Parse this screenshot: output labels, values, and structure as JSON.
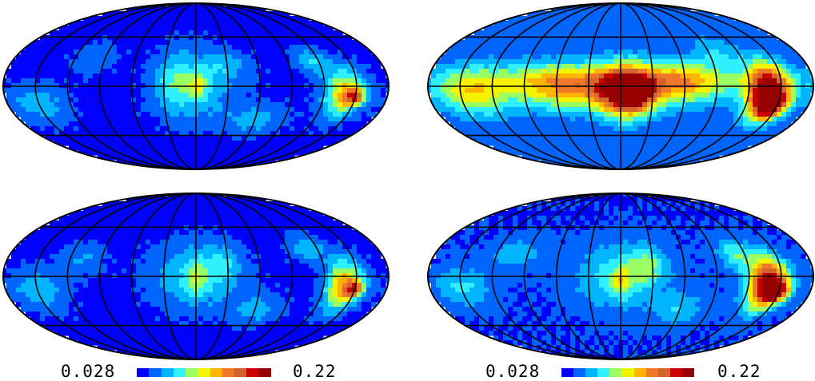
{
  "chart_data": {
    "type": "heatmap",
    "projection": "mollweide",
    "graticule": {
      "meridian_count": 13,
      "parallel_count": 3
    },
    "colormap": [
      "#0000ff",
      "#0064ff",
      "#00b4ff",
      "#2ef0ff",
      "#9aff62",
      "#f4f400",
      "#ffb400",
      "#f07828",
      "#d2642c",
      "#c80000",
      "#960000"
    ],
    "panels": [
      {
        "id": "top-left",
        "background_level": 0.04,
        "blobs": [
          {
            "lon": 0,
            "lat": 0,
            "amp": 0.04,
            "sx": 26,
            "sy": 22
          },
          {
            "lon": -2,
            "lat": 0,
            "amp": 0.04,
            "sx": 6,
            "sy": 8
          },
          {
            "lon": 20,
            "lat": 5,
            "amp": 0.03,
            "sx": 12,
            "sy": 18
          },
          {
            "lon": -30,
            "lat": 18,
            "amp": 0.025,
            "sx": 16,
            "sy": 8
          },
          {
            "lon": -140,
            "lat": -6,
            "amp": 0.1,
            "sx": 13,
            "sy": 14
          },
          {
            "lon": -150,
            "lat": -10,
            "amp": 0.09,
            "sx": 6,
            "sy": 5
          },
          {
            "lon": -115,
            "lat": 22,
            "amp": 0.04,
            "sx": 12,
            "sy": 8
          },
          {
            "lon": 150,
            "lat": -16,
            "amp": 0.035,
            "sx": 18,
            "sy": 12
          },
          {
            "lon": 100,
            "lat": 25,
            "amp": 0.02,
            "sx": 15,
            "sy": 10
          },
          {
            "lon": -60,
            "lat": -30,
            "amp": 0.03,
            "sx": 20,
            "sy": 10
          }
        ]
      },
      {
        "id": "top-right",
        "background_level": 0.05,
        "blobs": [
          {
            "lon": 0,
            "lat": 6,
            "amp": 0.045,
            "sx": 100,
            "sy": 10
          },
          {
            "lon": 0,
            "lat": -5,
            "amp": 0.045,
            "sx": 60,
            "sy": 12
          },
          {
            "lon": -5,
            "lat": -5,
            "amp": 0.15,
            "sx": 18,
            "sy": 16
          },
          {
            "lon": -12,
            "lat": -10,
            "amp": 0.1,
            "sx": 8,
            "sy": 6
          },
          {
            "lon": -138,
            "lat": -4,
            "amp": 0.17,
            "sx": 14,
            "sy": 16
          },
          {
            "lon": -145,
            "lat": -18,
            "amp": 0.12,
            "sx": 10,
            "sy": 8
          },
          {
            "lon": 140,
            "lat": -5,
            "amp": 0.07,
            "sx": 25,
            "sy": 15
          },
          {
            "lon": 60,
            "lat": 0,
            "amp": 0.05,
            "sx": 30,
            "sy": 15
          },
          {
            "lon": -60,
            "lat": 5,
            "amp": 0.05,
            "sx": 25,
            "sy": 12
          },
          {
            "lon": -100,
            "lat": 30,
            "amp": 0.03,
            "sx": 15,
            "sy": 10
          }
        ]
      },
      {
        "id": "bottom-left",
        "background_level": 0.04,
        "blobs": [
          {
            "lon": 0,
            "lat": 0,
            "amp": 0.045,
            "sx": 28,
            "sy": 20
          },
          {
            "lon": 0,
            "lat": -2,
            "amp": 0.035,
            "sx": 6,
            "sy": 10
          },
          {
            "lon": -25,
            "lat": 12,
            "amp": 0.025,
            "sx": 12,
            "sy": 12
          },
          {
            "lon": -140,
            "lat": -8,
            "amp": 0.11,
            "sx": 12,
            "sy": 15
          },
          {
            "lon": -150,
            "lat": -12,
            "amp": 0.09,
            "sx": 6,
            "sy": 5
          },
          {
            "lon": -110,
            "lat": 25,
            "amp": 0.04,
            "sx": 12,
            "sy": 8
          },
          {
            "lon": 150,
            "lat": -12,
            "amp": 0.035,
            "sx": 18,
            "sy": 12
          },
          {
            "lon": 110,
            "lat": 15,
            "amp": 0.025,
            "sx": 15,
            "sy": 10
          },
          {
            "lon": -60,
            "lat": -30,
            "amp": 0.03,
            "sx": 18,
            "sy": 10
          }
        ]
      },
      {
        "id": "bottom-right",
        "background_level": 0.045,
        "blobs": [
          {
            "lon": 0,
            "lat": 0,
            "amp": 0.05,
            "sx": 28,
            "sy": 20
          },
          {
            "lon": 0,
            "lat": -5,
            "amp": 0.04,
            "sx": 6,
            "sy": 8
          },
          {
            "lon": -25,
            "lat": 10,
            "amp": 0.035,
            "sx": 12,
            "sy": 12
          },
          {
            "lon": -138,
            "lat": -6,
            "amp": 0.17,
            "sx": 13,
            "sy": 16
          },
          {
            "lon": -148,
            "lat": -14,
            "amp": 0.12,
            "sx": 8,
            "sy": 6
          },
          {
            "lon": -110,
            "lat": 20,
            "amp": 0.045,
            "sx": 12,
            "sy": 10
          },
          {
            "lon": 150,
            "lat": -10,
            "amp": 0.04,
            "sx": 18,
            "sy": 12
          },
          {
            "lon": 100,
            "lat": 20,
            "amp": 0.03,
            "sx": 18,
            "sy": 10
          },
          {
            "lon": -60,
            "lat": -30,
            "amp": 0.035,
            "sx": 18,
            "sy": 10
          }
        ]
      }
    ],
    "colorbars": [
      {
        "min_label": "0.028",
        "max_label": "0.22"
      },
      {
        "min_label": "0.028",
        "max_label": "0.22"
      }
    ],
    "vmin": 0.028,
    "vmax": 0.22
  }
}
